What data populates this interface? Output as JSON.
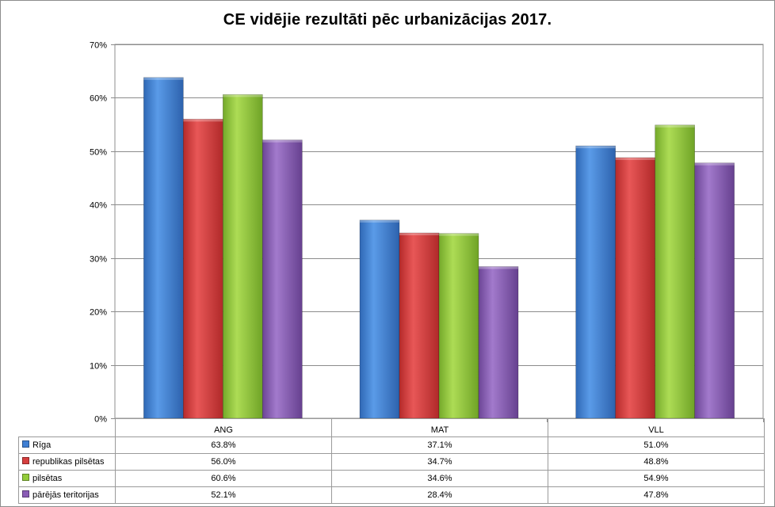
{
  "chart_data": {
    "type": "bar",
    "title": "CE vidējie rezultāti pēc urbanizācijas 2017.",
    "categories": [
      "ANG",
      "MAT",
      "VLL"
    ],
    "ylim": [
      0,
      70
    ],
    "yticks": [
      "0%",
      "10%",
      "20%",
      "30%",
      "40%",
      "50%",
      "60%",
      "70%"
    ],
    "grid": true,
    "legend": "data-table",
    "series": [
      {
        "name": "Rīga",
        "color": "#3f7fd4",
        "values": [
          63.8,
          37.1,
          51.0
        ],
        "labels": [
          "63.8%",
          "37.1%",
          "51.0%"
        ]
      },
      {
        "name": "republikas pilsētas",
        "color": "#d63f3f",
        "values": [
          56.0,
          34.7,
          48.8
        ],
        "labels": [
          "56.0%",
          "34.7%",
          "48.8%"
        ]
      },
      {
        "name": "pilsētas",
        "color": "#93cc3a",
        "values": [
          60.6,
          34.6,
          54.9
        ],
        "labels": [
          "60.6%",
          "34.6%",
          "54.9%"
        ]
      },
      {
        "name": "pārējās teritorijas",
        "color": "#8a5cb6",
        "values": [
          52.1,
          28.4,
          47.8
        ],
        "labels": [
          "52.1%",
          "28.4%",
          "47.8%"
        ]
      }
    ]
  }
}
